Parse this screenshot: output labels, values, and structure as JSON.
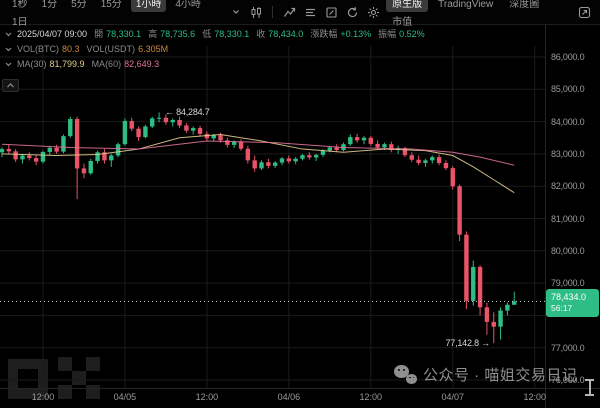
{
  "toolbar": {
    "timeframes": [
      "1秒",
      "1分",
      "5分",
      "15分",
      "1小時",
      "4小時",
      "1日"
    ],
    "selected_timeframe": "1小時",
    "view_tabs": [
      "原生版",
      "TradingView",
      "深度圖",
      "市值"
    ],
    "selected_view_tab": "原生版",
    "icons": [
      "chevron-down-icon",
      "candle-style-icon",
      "indicators-icon",
      "indicator-list-icon",
      "draw-tools-icon",
      "replay-icon",
      "settings-icon",
      "expand-icon"
    ]
  },
  "readout": {
    "datetime": "2025/04/07 09:00",
    "open_label": "開",
    "open": "78,330.1",
    "high_label": "高",
    "high": "78,735.6",
    "low_label": "低",
    "low": "78,330.1",
    "close_label": "收",
    "close": "78,434.0",
    "change_label": "漲跌幅",
    "change": "+0.13%",
    "amplitude_label": "振幅",
    "amplitude": "0.52%"
  },
  "volume_row": {
    "btc_label": "VOL(BTC)",
    "btc_value": "80.3",
    "usdt_label": "VOL(USDT)",
    "usdt_value": "6.305M"
  },
  "ma_row": {
    "ma30_label": "MA(30)",
    "ma30_value": "81,799.9",
    "ma60_label": "MA(60)",
    "ma60_value": "82,649.3"
  },
  "price_tag": {
    "price": "78,434.0",
    "countdown": "56:17"
  },
  "annotations": {
    "high_marker": "← 84,284.7",
    "low_marker": "77,142.8 →"
  },
  "watermark": {
    "text": "公众号 · 喵姐交易日记"
  },
  "colors": {
    "up": "#2ebd85",
    "down": "#ea5467",
    "ma30": "#e3cd8e",
    "ma60": "#e0719b",
    "tag_bg": "#2ebd85",
    "grid": "#1b1b1b",
    "axis_text": "#9b9b9b",
    "current_price_line": "#cfcfcf"
  },
  "chart_data": {
    "type": "candlestick",
    "timeframe": "1小時",
    "current_price": 78434.0,
    "visible_high": {
      "price": 84284.7,
      "t": 29
    },
    "visible_low": {
      "price": 77142.8,
      "t": 78
    },
    "y_axis": {
      "min": 76000,
      "max": 86300,
      "labels": [
        {
          "text": "86,000.0",
          "price": 86000
        },
        {
          "text": "85,000.0",
          "price": 85000
        },
        {
          "text": "84,000.0",
          "price": 84000
        },
        {
          "text": "83,000.0",
          "price": 83000
        },
        {
          "text": "82,000.0",
          "price": 82000
        },
        {
          "text": "81,000.0",
          "price": 81000
        },
        {
          "text": "80,000.0",
          "price": 80000
        },
        {
          "text": "79,000.0",
          "price": 79000
        },
        {
          "text": "77,000.0",
          "price": 77000
        },
        {
          "text": "76,000.0",
          "price": 76000
        }
      ],
      "grid_prices": [
        86000,
        85000,
        84000,
        83000,
        82000,
        81000,
        80000,
        79000,
        78000,
        77000,
        76000
      ]
    },
    "x_axis": {
      "ticks": [
        {
          "label": "12:00",
          "t": 12
        },
        {
          "label": "04/05",
          "t": 24
        },
        {
          "label": "12:00",
          "t": 36
        },
        {
          "label": "04/06",
          "t": 48
        },
        {
          "label": "12:00",
          "t": 60
        },
        {
          "label": "04/07",
          "t": 72
        },
        {
          "label": "12:00",
          "t": 84
        }
      ]
    },
    "candles": [
      [
        6,
        83050,
        83200,
        82900,
        83150
      ],
      [
        7,
        83150,
        83300,
        83000,
        83080
      ],
      [
        8,
        83080,
        83150,
        82750,
        82830
      ],
      [
        9,
        82830,
        83000,
        82700,
        82950
      ],
      [
        10,
        82950,
        83050,
        82800,
        82870
      ],
      [
        11,
        82870,
        82950,
        82650,
        82760
      ],
      [
        12,
        82760,
        83100,
        82700,
        83060
      ],
      [
        13,
        83060,
        83250,
        82950,
        83190
      ],
      [
        14,
        83190,
        83280,
        83000,
        83070
      ],
      [
        15,
        83070,
        83600,
        83020,
        83550
      ],
      [
        16,
        83550,
        84150,
        83500,
        84080
      ],
      [
        17,
        84080,
        84150,
        81600,
        82550
      ],
      [
        18,
        82550,
        82700,
        82250,
        82400
      ],
      [
        19,
        82400,
        82850,
        82350,
        82780
      ],
      [
        20,
        82780,
        83100,
        82700,
        83050
      ],
      [
        21,
        83050,
        83150,
        82700,
        82800
      ],
      [
        22,
        82800,
        83000,
        82600,
        82950
      ],
      [
        23,
        82950,
        83350,
        82900,
        83300
      ],
      [
        24,
        83300,
        84100,
        83250,
        84020
      ],
      [
        25,
        84020,
        84120,
        83700,
        83780
      ],
      [
        26,
        83780,
        83850,
        83400,
        83520
      ],
      [
        27,
        83520,
        83900,
        83480,
        83850
      ],
      [
        28,
        83850,
        84150,
        83800,
        84100
      ],
      [
        29,
        84100,
        84284.7,
        83980,
        84120
      ],
      [
        30,
        84120,
        84220,
        83900,
        83980
      ],
      [
        31,
        83980,
        84100,
        83850,
        84050
      ],
      [
        32,
        84050,
        84150,
        83800,
        83880
      ],
      [
        33,
        83880,
        83950,
        83650,
        83720
      ],
      [
        34,
        83720,
        83850,
        83600,
        83800
      ],
      [
        35,
        83800,
        83870,
        83550,
        83620
      ],
      [
        36,
        83620,
        83700,
        83400,
        83480
      ],
      [
        37,
        83480,
        83620,
        83380,
        83580
      ],
      [
        38,
        83580,
        83650,
        83350,
        83420
      ],
      [
        39,
        83420,
        83500,
        83200,
        83280
      ],
      [
        40,
        83280,
        83420,
        83180,
        83380
      ],
      [
        41,
        83380,
        83450,
        83100,
        83160
      ],
      [
        42,
        83160,
        83250,
        82700,
        82800
      ],
      [
        43,
        82800,
        82950,
        82450,
        82550
      ],
      [
        44,
        82550,
        82800,
        82500,
        82740
      ],
      [
        45,
        82740,
        82850,
        82550,
        82630
      ],
      [
        46,
        82630,
        82780,
        82560,
        82730
      ],
      [
        47,
        82730,
        82900,
        82650,
        82860
      ],
      [
        48,
        82860,
        82950,
        82700,
        82770
      ],
      [
        49,
        82770,
        82900,
        82680,
        82850
      ],
      [
        50,
        82850,
        83000,
        82800,
        82960
      ],
      [
        51,
        82960,
        83050,
        82820,
        82890
      ],
      [
        52,
        82890,
        83000,
        82780,
        82970
      ],
      [
        53,
        82970,
        83150,
        82900,
        83100
      ],
      [
        54,
        83100,
        83250,
        83050,
        83200
      ],
      [
        55,
        83200,
        83300,
        83050,
        83120
      ],
      [
        56,
        83120,
        83350,
        83080,
        83300
      ],
      [
        57,
        83300,
        83600,
        83250,
        83520
      ],
      [
        58,
        83520,
        83620,
        83350,
        83420
      ],
      [
        59,
        83420,
        83550,
        83300,
        83500
      ],
      [
        60,
        83500,
        83560,
        83250,
        83310
      ],
      [
        61,
        83310,
        83420,
        83150,
        83200
      ],
      [
        62,
        83200,
        83350,
        83120,
        83300
      ],
      [
        63,
        83300,
        83380,
        83050,
        83120
      ],
      [
        64,
        83120,
        83250,
        83000,
        83180
      ],
      [
        65,
        83180,
        83220,
        82900,
        82960
      ],
      [
        66,
        82960,
        83050,
        82750,
        82820
      ],
      [
        67,
        82820,
        82950,
        82650,
        82720
      ],
      [
        68,
        82720,
        82850,
        82600,
        82800
      ],
      [
        69,
        82800,
        82950,
        82700,
        82900
      ],
      [
        70,
        82900,
        82980,
        82650,
        82720
      ],
      [
        71,
        82720,
        82800,
        82500,
        82560
      ],
      [
        72,
        82560,
        82620,
        81900,
        82000
      ],
      [
        73,
        82000,
        82050,
        80300,
        80500
      ],
      [
        74,
        80500,
        80600,
        78200,
        78450
      ],
      [
        75,
        78450,
        79700,
        78300,
        79500
      ],
      [
        76,
        79500,
        79550,
        78000,
        78250
      ],
      [
        77,
        78250,
        78400,
        77400,
        77800
      ],
      [
        78,
        77800,
        78100,
        77142.8,
        77650
      ],
      [
        79,
        77650,
        78250,
        77250,
        78150
      ],
      [
        80,
        78150,
        78400,
        78000,
        78330
      ],
      [
        81,
        78330.1,
        78735.6,
        78330.1,
        78434.0
      ]
    ],
    "ma30_points": [
      [
        6,
        83000
      ],
      [
        14,
        82950
      ],
      [
        20,
        82980
      ],
      [
        26,
        83150
      ],
      [
        32,
        83500
      ],
      [
        38,
        83600
      ],
      [
        44,
        83400
      ],
      [
        50,
        83150
      ],
      [
        56,
        83050
      ],
      [
        62,
        83150
      ],
      [
        68,
        83100
      ],
      [
        72,
        82950
      ],
      [
        75,
        82600
      ],
      [
        78,
        82200
      ],
      [
        81,
        81800
      ]
    ],
    "ma60_points": [
      [
        6,
        83300
      ],
      [
        16,
        83200
      ],
      [
        26,
        83150
      ],
      [
        36,
        83400
      ],
      [
        46,
        83350
      ],
      [
        56,
        83200
      ],
      [
        66,
        83150
      ],
      [
        72,
        83050
      ],
      [
        76,
        82900
      ],
      [
        81,
        82650
      ]
    ]
  }
}
